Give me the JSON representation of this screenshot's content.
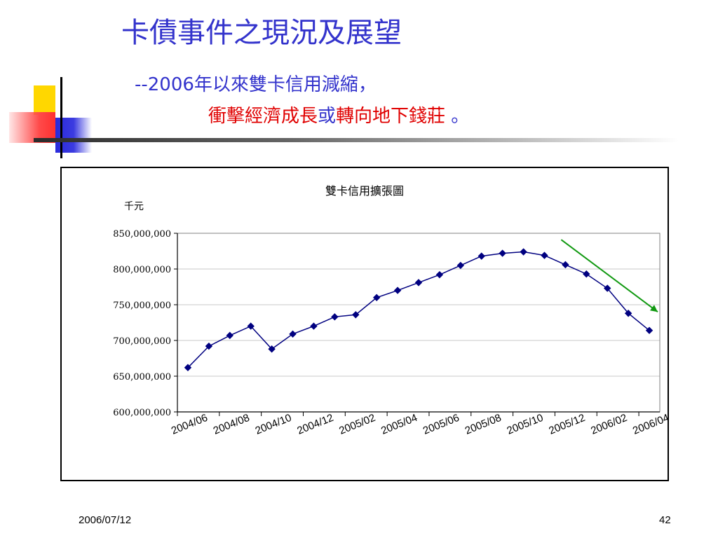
{
  "slide": {
    "title": "卡債事件之現況及展望",
    "subtitle_line1": "--2006年以來雙卡信用減縮，",
    "subtitle_line2_part1": "衝擊經濟成長",
    "subtitle_line2_part2": "或",
    "subtitle_line2_part3": "轉向地下錢莊",
    "subtitle_line2_part4": " 。",
    "footer_date": "2006/07/12",
    "page_number": "42"
  },
  "colors": {
    "title": "#3333cc",
    "highlight": "#e00000",
    "series": "#000080",
    "trend_arrow": "#119911"
  },
  "chart_data": {
    "type": "line",
    "title": "雙卡信用擴張圖",
    "ylabel": "千元",
    "xlabel": "",
    "ylim": [
      600000000,
      850000000
    ],
    "yticks": [
      "850,000,000",
      "800,000,000",
      "750,000,000",
      "700,000,000",
      "650,000,000",
      "600,000,000"
    ],
    "ytick_values": [
      850000000,
      800000000,
      750000000,
      700000000,
      650000000,
      600000000
    ],
    "x_tick_labels": [
      "2004/06",
      "2004/08",
      "2004/10",
      "2004/12",
      "2005/02",
      "2005/04",
      "2005/06",
      "2005/08",
      "2005/10",
      "2005/12",
      "2006/02",
      "2006/04"
    ],
    "x": [
      "2004/06",
      "2004/07",
      "2004/08",
      "2004/09",
      "2004/10",
      "2004/11",
      "2004/12",
      "2005/01",
      "2005/02",
      "2005/03",
      "2005/04",
      "2005/05",
      "2005/06",
      "2005/07",
      "2005/08",
      "2005/09",
      "2005/10",
      "2005/11",
      "2005/12",
      "2006/01",
      "2006/02",
      "2006/03",
      "2006/04"
    ],
    "values": [
      662000000,
      692000000,
      707000000,
      720000000,
      688000000,
      709000000,
      720000000,
      733000000,
      736000000,
      760000000,
      770000000,
      781000000,
      792000000,
      805000000,
      818000000,
      822000000,
      824000000,
      819000000,
      806000000,
      793000000,
      773000000,
      738000000,
      714000000
    ],
    "grid": true,
    "legend": "none",
    "annotations": [
      "downward-trend-arrow"
    ]
  }
}
